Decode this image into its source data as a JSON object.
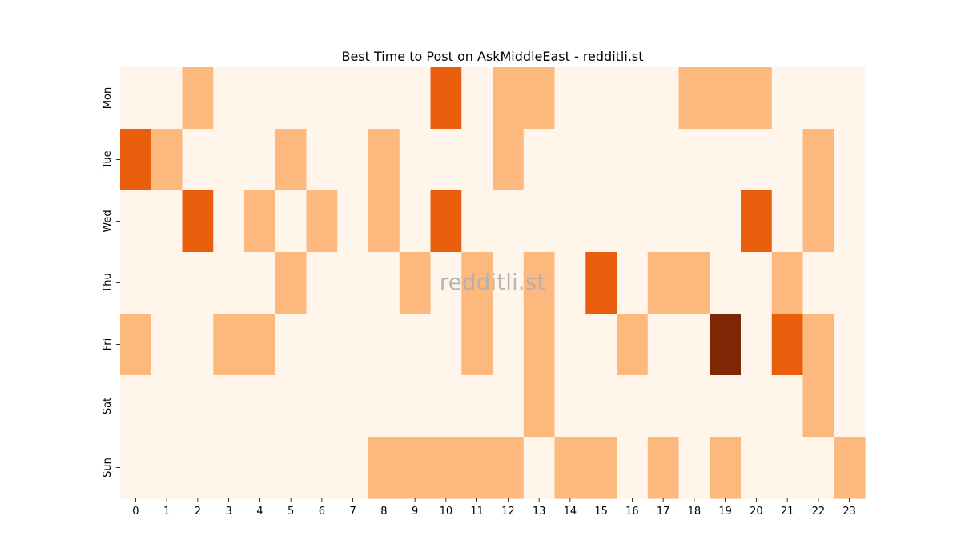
{
  "chart_data": {
    "type": "heatmap",
    "title": "Best Time to Post on AskMiddleEast - redditli.st",
    "xlabel": "",
    "ylabel": "",
    "x_categories": [
      "0",
      "1",
      "2",
      "3",
      "4",
      "5",
      "6",
      "7",
      "8",
      "9",
      "10",
      "11",
      "12",
      "13",
      "14",
      "15",
      "16",
      "17",
      "18",
      "19",
      "20",
      "21",
      "22",
      "23"
    ],
    "y_categories": [
      "Mon",
      "Tue",
      "Wed",
      "Thu",
      "Fri",
      "Sat",
      "Sun"
    ],
    "values": [
      [
        0,
        0,
        1,
        0,
        0,
        0,
        0,
        0,
        0,
        0,
        2,
        0,
        1,
        1,
        0,
        0,
        0,
        0,
        1,
        1,
        1,
        0,
        0,
        0
      ],
      [
        2,
        1,
        0,
        0,
        0,
        1,
        0,
        0,
        1,
        0,
        0,
        0,
        1,
        0,
        0,
        0,
        0,
        0,
        0,
        0,
        0,
        0,
        1,
        0
      ],
      [
        0,
        0,
        2,
        0,
        1,
        0,
        1,
        0,
        1,
        0,
        2,
        0,
        0,
        0,
        0,
        0,
        0,
        0,
        0,
        0,
        2,
        0,
        1,
        0
      ],
      [
        0,
        0,
        0,
        0,
        0,
        1,
        0,
        0,
        0,
        1,
        0,
        1,
        0,
        1,
        0,
        2,
        0,
        1,
        1,
        0,
        0,
        1,
        0,
        0
      ],
      [
        1,
        0,
        0,
        1,
        1,
        0,
        0,
        0,
        0,
        0,
        0,
        1,
        0,
        1,
        0,
        0,
        1,
        0,
        0,
        3,
        0,
        2,
        1,
        0
      ],
      [
        0,
        0,
        0,
        0,
        0,
        0,
        0,
        0,
        0,
        0,
        0,
        0,
        0,
        1,
        0,
        0,
        0,
        0,
        0,
        0,
        0,
        0,
        1,
        0
      ],
      [
        0,
        0,
        0,
        0,
        0,
        0,
        0,
        0,
        1,
        1,
        1,
        1,
        1,
        0,
        1,
        1,
        0,
        1,
        0,
        1,
        0,
        0,
        0,
        1
      ]
    ],
    "color_scale": [
      "#fff5eb",
      "#fdb97d",
      "#e95e0d",
      "#7f2704"
    ],
    "colorbar": false,
    "watermark": "redditli.st"
  }
}
